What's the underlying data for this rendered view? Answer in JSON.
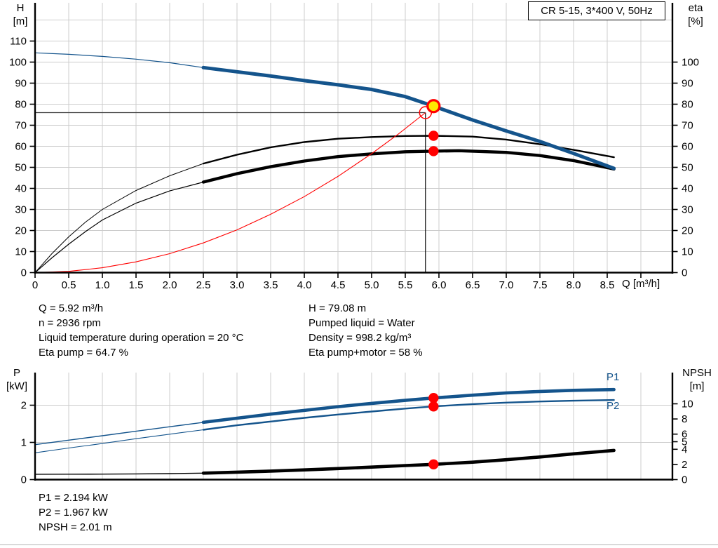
{
  "colors": {
    "curve_blue": "#14548C",
    "curve_black": "#000000",
    "marker_red": "#FF0000",
    "marker_yellow": "#FFE800",
    "grid": "#CCCCCC",
    "reference_line": "#3C3C3C",
    "divider": "#B4B4B4"
  },
  "info": {
    "left_column": [
      "Q = 5.92 m³/h",
      "n = 2936 rpm",
      "Liquid temperature during operation = 20 °C",
      "Eta pump = 64.7 %"
    ],
    "right_column": [
      "H = 79.08 m",
      "Pumped liquid = Water",
      "Density = 998.2 kg/m³",
      "Eta pump+motor = 58 %"
    ],
    "bottom_column": [
      "P1 = 2.194 kW",
      "P2 = 1.967 kW",
      "NPSH = 2.01 m"
    ]
  },
  "chart_data": [
    {
      "type": "line",
      "title": "CR 5-15, 3*400 V, 50Hz",
      "x": {
        "label": "Q [m³/h]",
        "min": 0,
        "max": 9.5,
        "ticks": [
          [
            0,
            "0"
          ],
          [
            0.5,
            "0.5"
          ],
          [
            1,
            "1.0"
          ],
          [
            1.5,
            "1.5"
          ],
          [
            2,
            "2.0"
          ],
          [
            2.5,
            "2.5"
          ],
          [
            3,
            "3.0"
          ],
          [
            3.5,
            "3.5"
          ],
          [
            4,
            "4.0"
          ],
          [
            4.5,
            "4.5"
          ],
          [
            5,
            "5.0"
          ],
          [
            5.5,
            "5.5"
          ],
          [
            6,
            "6.0"
          ],
          [
            6.5,
            "6.5"
          ],
          [
            7,
            "7.0"
          ],
          [
            7.5,
            "7.5"
          ],
          [
            8,
            "8.0"
          ],
          [
            8.5,
            "8.5"
          ],
          [
            9,
            ""
          ]
        ],
        "grid": [
          0.5,
          1,
          1.5,
          2,
          2.5,
          3,
          3.5,
          4,
          4.5,
          5,
          5.5,
          6,
          6.5,
          7,
          7.5,
          8,
          8.5,
          9
        ]
      },
      "y_left": {
        "title_lines": [
          "H",
          "[m]"
        ],
        "min": 0,
        "max": 128,
        "ticks": [
          [
            0,
            "0"
          ],
          [
            10,
            "10"
          ],
          [
            20,
            "20"
          ],
          [
            30,
            "30"
          ],
          [
            40,
            "40"
          ],
          [
            50,
            "50"
          ],
          [
            60,
            "60"
          ],
          [
            70,
            "70"
          ],
          [
            80,
            "80"
          ],
          [
            90,
            "90"
          ],
          [
            100,
            "100"
          ],
          [
            110,
            "110"
          ]
        ],
        "grid": [
          10,
          20,
          30,
          40,
          50,
          60,
          70,
          80,
          90,
          100,
          110,
          120
        ]
      },
      "y_right": {
        "title_lines": [
          "eta",
          "[%]"
        ],
        "min": 0,
        "max": 128,
        "ticks": [
          [
            0,
            "0"
          ],
          [
            10,
            "10"
          ],
          [
            20,
            "20"
          ],
          [
            30,
            "30"
          ],
          [
            40,
            "40"
          ],
          [
            50,
            "50"
          ],
          [
            60,
            "60"
          ],
          [
            70,
            "70"
          ],
          [
            80,
            "80"
          ],
          [
            90,
            "90"
          ],
          [
            100,
            "100"
          ]
        ]
      },
      "series": [
        {
          "name": "eta-pump",
          "axis": "right",
          "color": "#000000",
          "thin_until": 2.5,
          "points": [
            [
              0,
              0
            ],
            [
              0.25,
              9
            ],
            [
              0.5,
              17
            ],
            [
              0.75,
              24
            ],
            [
              1,
              30
            ],
            [
              1.5,
              39
            ],
            [
              2,
              46
            ],
            [
              2.5,
              51.8
            ],
            [
              3,
              56
            ],
            [
              3.5,
              59.5
            ],
            [
              4,
              62
            ],
            [
              4.5,
              63.6
            ],
            [
              5,
              64.4
            ],
            [
              5.5,
              64.9
            ],
            [
              5.92,
              65
            ],
            [
              6.5,
              64.6
            ],
            [
              7,
              63.2
            ],
            [
              7.5,
              61
            ],
            [
              8,
              58.3
            ],
            [
              8.6,
              54.8
            ]
          ]
        },
        {
          "name": "eta-pump-motor",
          "axis": "right",
          "color": "#000000",
          "thin_until": 2.5,
          "points": [
            [
              0,
              0
            ],
            [
              0.25,
              7
            ],
            [
              0.5,
              13.5
            ],
            [
              0.75,
              19.5
            ],
            [
              1,
              25
            ],
            [
              1.5,
              33
            ],
            [
              2,
              38.8
            ],
            [
              2.5,
              43
            ],
            [
              3,
              47
            ],
            [
              3.5,
              50.3
            ],
            [
              4,
              53
            ],
            [
              4.5,
              55.1
            ],
            [
              5,
              56.4
            ],
            [
              5.5,
              57.4
            ],
            [
              5.92,
              57.7
            ],
            [
              6.3,
              57.9
            ],
            [
              7,
              57.1
            ],
            [
              7.5,
              55.6
            ],
            [
              8,
              53.2
            ],
            [
              8.6,
              49.2
            ]
          ]
        },
        {
          "name": "system-curve",
          "axis": "left",
          "color": "#FF0000",
          "thin_until": 99,
          "points": [
            [
              0,
              0
            ],
            [
              0.5,
              0.6
            ],
            [
              1,
              2.3
            ],
            [
              1.5,
              5.1
            ],
            [
              2,
              9
            ],
            [
              2.5,
              14.1
            ],
            [
              3,
              20.3
            ],
            [
              3.5,
              27.7
            ],
            [
              4,
              36.1
            ],
            [
              4.5,
              45.7
            ],
            [
              5,
              56.5
            ],
            [
              5.4,
              65.9
            ],
            [
              5.8,
              76
            ]
          ]
        },
        {
          "name": "H",
          "axis": "left",
          "color": "#14548C",
          "thin_until": 2.5,
          "points": [
            [
              0,
              104.4
            ],
            [
              0.5,
              103.7
            ],
            [
              1,
              102.7
            ],
            [
              1.5,
              101.4
            ],
            [
              2,
              99.7
            ],
            [
              2.5,
              97.4
            ],
            [
              3,
              95.4
            ],
            [
              3.5,
              93.4
            ],
            [
              4,
              91.2
            ],
            [
              4.5,
              89.2
            ],
            [
              5,
              87.0
            ],
            [
              5.5,
              83.6
            ],
            [
              5.92,
              79.08
            ],
            [
              6.5,
              72.5
            ],
            [
              7,
              67.3
            ],
            [
              7.5,
              62.3
            ],
            [
              8,
              56.6
            ],
            [
              8.6,
              49.5
            ]
          ]
        }
      ],
      "reference_lines": [
        {
          "name": "duty-head-line",
          "orientation": "horizontal",
          "value": 76,
          "q_from": 0,
          "q_to": 5.8
        },
        {
          "name": "duty-flow-line",
          "orientation": "vertical",
          "q": 5.8,
          "v_from": 0,
          "v_to": 76
        }
      ],
      "markers": [
        {
          "name": "duty-point",
          "type": "open-circle",
          "q": 5.8,
          "v": 76,
          "axis": "left"
        },
        {
          "name": "eta-pump-point",
          "type": "dot",
          "q": 5.92,
          "v": 65,
          "axis": "right"
        },
        {
          "name": "eta-pump-motor-point",
          "type": "dot",
          "q": 5.92,
          "v": 57.7,
          "axis": "right"
        },
        {
          "name": "operating-point",
          "type": "ring-dot",
          "q": 5.92,
          "v": 79.08,
          "axis": "left"
        }
      ]
    },
    {
      "type": "line",
      "x": {
        "min": 0,
        "max": 9.5,
        "grid": [
          0.5,
          1,
          1.5,
          2,
          2.5,
          3,
          3.5,
          4,
          4.5,
          5,
          5.5,
          6,
          6.5,
          7,
          7.5,
          8,
          8.5,
          9
        ]
      },
      "y_left": {
        "title_lines": [
          "P",
          "[kW]"
        ],
        "min": 0,
        "max": 2.88,
        "ticks": [
          [
            0,
            "0"
          ],
          [
            1,
            "1"
          ],
          [
            2,
            "2"
          ]
        ],
        "grid": [
          1,
          2
        ]
      },
      "y_right": {
        "title_lines": [
          "NPSH",
          "[m]"
        ],
        "min": 0,
        "max": 14.1,
        "ticks": [
          [
            0,
            "0"
          ],
          [
            2,
            "2"
          ],
          [
            4,
            "4"
          ],
          [
            5,
            "5"
          ],
          [
            6,
            "6"
          ],
          [
            8,
            "8"
          ],
          [
            10,
            "10"
          ]
        ]
      },
      "series": [
        {
          "name": "P1",
          "axis": "left",
          "color": "#14548C",
          "thin_until": 2.5,
          "points": [
            [
              0,
              0.94
            ],
            [
              0.5,
              1.06
            ],
            [
              1,
              1.18
            ],
            [
              1.5,
              1.3
            ],
            [
              2,
              1.42
            ],
            [
              2.5,
              1.54
            ],
            [
              3,
              1.65
            ],
            [
              3.5,
              1.76
            ],
            [
              4,
              1.86
            ],
            [
              4.5,
              1.96
            ],
            [
              5,
              2.05
            ],
            [
              5.5,
              2.13
            ],
            [
              5.92,
              2.194
            ],
            [
              6.5,
              2.27
            ],
            [
              7,
              2.33
            ],
            [
              7.5,
              2.37
            ],
            [
              8,
              2.4
            ],
            [
              8.6,
              2.42
            ]
          ]
        },
        {
          "name": "P2",
          "axis": "left",
          "color": "#14548C",
          "thin_until": 2.5,
          "points": [
            [
              0,
              0.72
            ],
            [
              0.5,
              0.85
            ],
            [
              1,
              0.97
            ],
            [
              1.5,
              1.1
            ],
            [
              2,
              1.22
            ],
            [
              2.5,
              1.34
            ],
            [
              3,
              1.46
            ],
            [
              3.5,
              1.56
            ],
            [
              4,
              1.66
            ],
            [
              4.5,
              1.75
            ],
            [
              5,
              1.83
            ],
            [
              5.5,
              1.91
            ],
            [
              5.92,
              1.967
            ],
            [
              6.5,
              2.03
            ],
            [
              7,
              2.07
            ],
            [
              7.5,
              2.1
            ],
            [
              8,
              2.12
            ],
            [
              8.6,
              2.14
            ]
          ]
        },
        {
          "name": "NPSH",
          "axis": "right",
          "color": "#000000",
          "thin_until": 2.5,
          "points": [
            [
              0,
              0.7
            ],
            [
              0.5,
              0.71
            ],
            [
              1,
              0.72
            ],
            [
              1.5,
              0.75
            ],
            [
              2,
              0.79
            ],
            [
              2.5,
              0.85
            ],
            [
              3,
              0.98
            ],
            [
              3.5,
              1.12
            ],
            [
              4,
              1.28
            ],
            [
              4.5,
              1.45
            ],
            [
              5,
              1.65
            ],
            [
              5.5,
              1.85
            ],
            [
              5.92,
              2.01
            ],
            [
              6.5,
              2.3
            ],
            [
              7,
              2.62
            ],
            [
              7.5,
              2.98
            ],
            [
              8,
              3.4
            ],
            [
              8.6,
              3.85
            ]
          ]
        }
      ],
      "markers": [
        {
          "name": "p1-point",
          "type": "dot",
          "q": 5.92,
          "v": 2.194,
          "axis": "left"
        },
        {
          "name": "p2-point",
          "type": "dot",
          "q": 5.92,
          "v": 1.967,
          "axis": "left"
        },
        {
          "name": "npsh-point",
          "type": "dot",
          "q": 5.92,
          "v": 2.01,
          "axis": "right"
        }
      ]
    }
  ]
}
